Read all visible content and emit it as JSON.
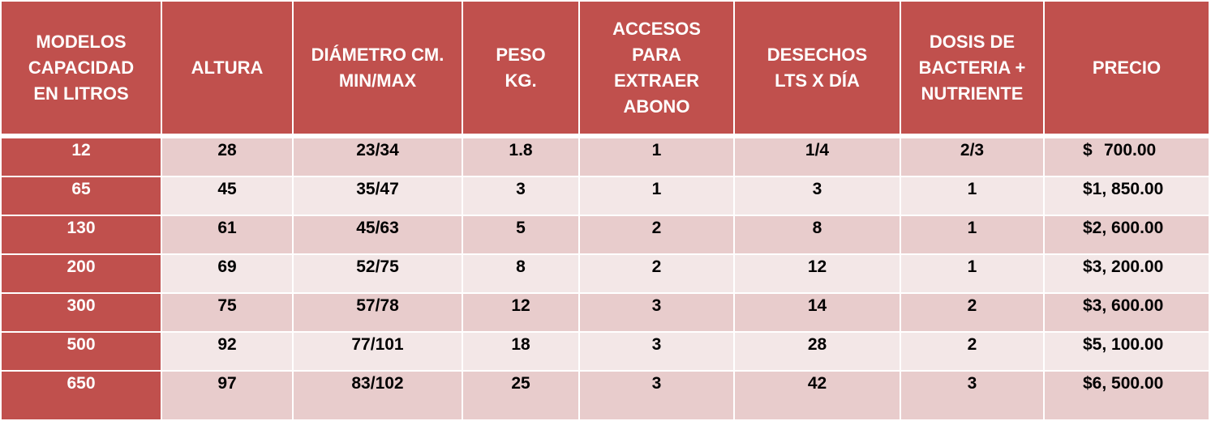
{
  "table": {
    "headers": [
      "MODELOS CAPACIDAD EN LITROS",
      "ALTURA",
      "DIÁMETRO CM. MIN/MAX",
      "PESO KG.",
      "ACCESOS PARA EXTRAER ABONO",
      "DESECHOS LTS X DÍA",
      "DOSIS DE BACTERIA + NUTRIENTE",
      "PRECIO"
    ],
    "header_lines": [
      [
        "MODELOS",
        "CAPACIDAD",
        "EN LITROS"
      ],
      [
        "ALTURA"
      ],
      [
        "DIÁMETRO CM.",
        "MIN/MAX"
      ],
      [
        "PESO",
        "KG."
      ],
      [
        "ACCESOS",
        "PARA",
        "EXTRAER",
        "ABONO"
      ],
      [
        "DESECHOS",
        "LTS X DÍA"
      ],
      [
        "DOSIS DE",
        "BACTERIA +",
        "NUTRIENTE"
      ],
      [
        "PRECIO"
      ]
    ],
    "rows": [
      [
        "12",
        "28",
        "23/34",
        "1.8",
        "1",
        "1/4",
        "2/3",
        "$   700.00"
      ],
      [
        "65",
        "45",
        "35/47",
        "3",
        "1",
        "3",
        "1",
        "$1, 850.00"
      ],
      [
        "130",
        "61",
        "45/63",
        "5",
        "2",
        "8",
        "1",
        "$2, 600.00"
      ],
      [
        "200",
        "69",
        "52/75",
        "8",
        "2",
        "12",
        "1",
        "$3, 200.00"
      ],
      [
        "300",
        "75",
        "57/78",
        "12",
        "3",
        "14",
        "2",
        "$3, 600.00"
      ],
      [
        "500",
        "92",
        "77/101",
        "18",
        "3",
        "28",
        "2",
        "$5, 100.00"
      ],
      [
        "650",
        "97",
        "83/102",
        "25",
        "3",
        "42",
        "3",
        "$6, 500.00"
      ]
    ],
    "first_price": {
      "symbol": "$",
      "amount": "700.00"
    }
  },
  "colors": {
    "header_bg": "#c0504d",
    "header_text": "#ffffff",
    "row_odd_bg": "#e8cccc",
    "row_even_bg": "#f3e7e7"
  }
}
